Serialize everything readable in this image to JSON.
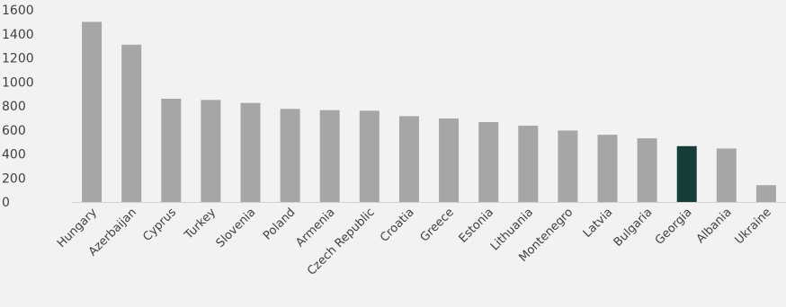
{
  "chart_data": {
    "type": "bar",
    "categories": [
      "Hungary",
      "Azerbaijan",
      "Cyprus",
      "Turkey",
      "Slovenia",
      "Poland",
      "Armenia",
      "Czech Republic",
      "Croatia",
      "Greece",
      "Estonia",
      "Lithuania",
      "Montenegro",
      "Latvia",
      "Bulgaria",
      "Georgia",
      "Albania",
      "Ukraine"
    ],
    "values": [
      1500,
      1310,
      860,
      850,
      825,
      775,
      765,
      760,
      715,
      695,
      665,
      635,
      595,
      560,
      530,
      465,
      445,
      140
    ],
    "highlight_category": "Georgia",
    "title": "",
    "xlabel": "",
    "ylabel": "",
    "ylim": [
      0,
      1600
    ],
    "yticks": [
      0,
      200,
      400,
      600,
      800,
      1000,
      1200,
      1400,
      1600
    ],
    "grid": false,
    "legend": "none"
  },
  "colors": {
    "bar": "#a6a6a6",
    "highlight": "#163d38",
    "background": "#f2f2f2",
    "text": "#404040"
  }
}
